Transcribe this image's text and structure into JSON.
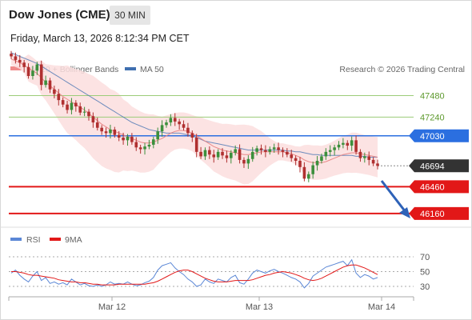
{
  "header": {
    "title": "Dow Jones (CME)",
    "interval": "30 MIN",
    "datetime": "Friday, March 13, 2026 8:12:34 PM CET"
  },
  "legend": {
    "ma20_bb": "MA 20 + Bollinger Bands",
    "ma50": "MA 50",
    "credit": "Research © 2026 Trading Central"
  },
  "rsi_legend": {
    "rsi": "RSI",
    "ma9": "9MA"
  },
  "colors": {
    "up_candle": "#3c8f3c",
    "down_candle": "#b03030",
    "ma20": "#e88080",
    "ma50": "#3f6fb0",
    "band_fill": "#fbdede",
    "resistance": "#9ccc78",
    "pivot": "#2b6fe0",
    "support": "#e21818",
    "last_price": "#333333",
    "arrow": "#2e62b8",
    "rsi": "#5b87d6",
    "rsi_ma9": "#e21818"
  },
  "chart_data": [
    {
      "type": "candlestick",
      "price_range": [
        46060,
        47700
      ],
      "x_ticks": [
        "Mar 12",
        "Mar 13",
        "Mar 14"
      ],
      "levels": [
        {
          "label": "47480",
          "value": 47480,
          "kind": "resistance"
        },
        {
          "label": "47240",
          "value": 47240,
          "kind": "resistance"
        },
        {
          "label": "47030",
          "value": 47030,
          "kind": "pivot"
        },
        {
          "label": "46694",
          "value": 46694,
          "kind": "last"
        },
        {
          "label": "46460",
          "value": 46460,
          "kind": "support"
        },
        {
          "label": "46160",
          "value": 46160,
          "kind": "support"
        }
      ],
      "close": [
        47920,
        47880,
        47850,
        47800,
        47700,
        47760,
        47830,
        47600,
        47650,
        47550,
        47500,
        47430,
        47380,
        47320,
        47400,
        47360,
        47290,
        47300,
        47250,
        47180,
        47120,
        47080,
        47060,
        47100,
        47040,
        47010,
        46980,
        47020,
        46960,
        46900,
        46880,
        46910,
        46930,
        46990,
        47080,
        47150,
        47180,
        47230,
        47190,
        47160,
        47120,
        47060,
        47010,
        46850,
        46800,
        46870,
        46820,
        46790,
        46850,
        46810,
        46780,
        46840,
        46880,
        46760,
        46720,
        46770,
        46850,
        46890,
        46870,
        46850,
        46880,
        46900,
        46870,
        46850,
        46820,
        46780,
        46750,
        46680,
        46550,
        46600,
        46700,
        46750,
        46800,
        46850,
        46870,
        46900,
        46930,
        46950,
        46920,
        46980,
        46850,
        46780,
        46800,
        46760,
        46720,
        46694
      ],
      "ma20": [
        47890,
        47870,
        47850,
        47820,
        47790,
        47760,
        47730,
        47680,
        47630,
        47590,
        47550,
        47510,
        47470,
        47440,
        47410,
        47380,
        47350,
        47320,
        47280,
        47240,
        47200,
        47160,
        47130,
        47100,
        47080,
        47060,
        47040,
        47020,
        47000,
        46980,
        46960,
        46950,
        46950,
        46960,
        46980,
        47000,
        47030,
        47060,
        47080,
        47090,
        47090,
        47080,
        47060,
        47030,
        47000,
        46970,
        46940,
        46910,
        46890,
        46870,
        46860,
        46850,
        46840,
        46830,
        46820,
        46820,
        46830,
        46840,
        46850,
        46850,
        46850,
        46850,
        46850,
        46850,
        46840,
        46830,
        46810,
        46790,
        46760,
        46740,
        46730,
        46730,
        46730,
        46740,
        46760,
        46780,
        46800,
        46820,
        46830,
        46840,
        46840,
        46830,
        46820,
        46810,
        46800,
        46790
      ],
      "ma50": [
        47960,
        47940,
        47920,
        47900,
        47880,
        47860,
        47840,
        47810,
        47780,
        47750,
        47720,
        47690,
        47660,
        47630,
        47600,
        47570,
        47540,
        47510,
        47480,
        47450,
        47420,
        47390,
        47360,
        47330,
        47300,
        47270,
        47240,
        47210,
        47180,
        47160,
        47140,
        47120,
        47100,
        47090,
        47080,
        47070,
        47060,
        47060,
        47060,
        47060,
        47050,
        47040,
        47030,
        47010,
        46990,
        46970,
        46960,
        46950,
        46940,
        46930,
        46920,
        46910,
        46900,
        46890,
        46880,
        46870,
        46870,
        46870,
        46870,
        46870,
        46870,
        46870,
        46870,
        46870,
        46860,
        46860,
        46850,
        46850,
        46840,
        46830,
        46820,
        46820,
        46810,
        46810,
        46810,
        46810,
        46810,
        46810,
        46810,
        46810,
        46800,
        46800,
        46800,
        46790,
        46790,
        46790
      ]
    },
    {
      "type": "line",
      "title": "RSI",
      "y_ticks": [
        70,
        50,
        30
      ],
      "ylim": [
        20,
        80
      ],
      "series": [
        {
          "name": "RSI",
          "values": [
            48,
            52,
            45,
            40,
            36,
            44,
            50,
            38,
            42,
            34,
            36,
            33,
            35,
            32,
            40,
            36,
            32,
            34,
            31,
            30,
            32,
            30,
            32,
            36,
            33,
            34,
            33,
            36,
            33,
            31,
            32,
            35,
            37,
            42,
            52,
            58,
            60,
            62,
            55,
            50,
            46,
            40,
            36,
            30,
            32,
            40,
            36,
            34,
            40,
            38,
            36,
            42,
            45,
            35,
            33,
            40,
            48,
            52,
            50,
            48,
            51,
            53,
            50,
            48,
            45,
            42,
            40,
            36,
            28,
            34,
            44,
            48,
            52,
            56,
            58,
            60,
            62,
            64,
            58,
            66,
            48,
            42,
            46,
            44,
            40,
            42
          ]
        },
        {
          "name": "9MA",
          "values": [
            50,
            50,
            49,
            48,
            46,
            45,
            45,
            44,
            43,
            42,
            41,
            39,
            38,
            37,
            36,
            36,
            35,
            35,
            34,
            33,
            33,
            32,
            32,
            32,
            32,
            33,
            33,
            33,
            33,
            33,
            33,
            33,
            34,
            35,
            37,
            40,
            43,
            46,
            49,
            51,
            52,
            52,
            50,
            47,
            44,
            41,
            39,
            37,
            36,
            36,
            36,
            37,
            38,
            38,
            38,
            38,
            39,
            41,
            43,
            45,
            46,
            48,
            49,
            50,
            49,
            48,
            46,
            44,
            41,
            39,
            38,
            39,
            41,
            44,
            47,
            50,
            53,
            56,
            58,
            59,
            59,
            57,
            55,
            52,
            49,
            46
          ]
        }
      ]
    }
  ]
}
